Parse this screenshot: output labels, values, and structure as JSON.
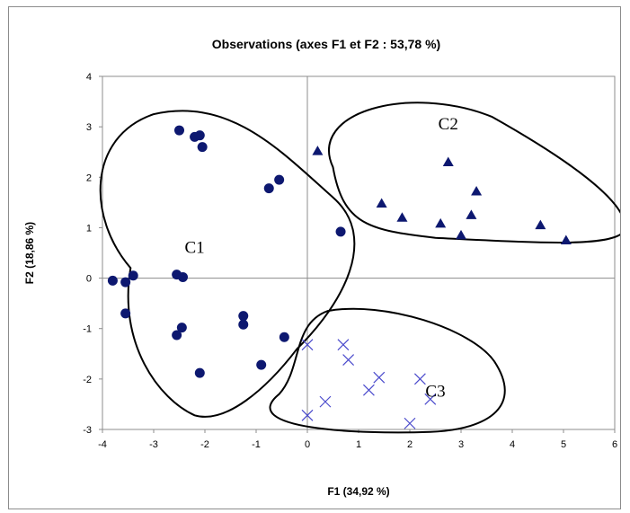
{
  "chart_data": {
    "type": "scatter",
    "title": "Observations (axes F1 et F2 : 53,78 %)",
    "xlabel": "F1 (34,92 %)",
    "ylabel": "F2 (18,86 %)",
    "xlim": [
      -4,
      6
    ],
    "ylim": [
      -3,
      4
    ],
    "xticks": [
      -4,
      -3,
      -2,
      -1,
      0,
      1,
      2,
      3,
      4,
      5,
      6
    ],
    "yticks": [
      -3,
      -2,
      -1,
      0,
      1,
      2,
      3,
      4
    ],
    "grid": false,
    "marker_color": "#0d1870",
    "series": [
      {
        "marker": "circle",
        "points": [
          [
            -2.5,
            2.93
          ],
          [
            -2.2,
            2.8
          ],
          [
            -2.1,
            2.83
          ],
          [
            -2.05,
            2.6
          ],
          [
            -0.75,
            1.78
          ],
          [
            -0.55,
            1.95
          ],
          [
            0.65,
            0.92
          ],
          [
            -3.8,
            -0.05
          ],
          [
            -3.55,
            -0.08
          ],
          [
            -3.4,
            0.05
          ],
          [
            -2.55,
            0.07
          ],
          [
            -2.43,
            0.02
          ],
          [
            -3.55,
            -0.7
          ],
          [
            -2.45,
            -0.98
          ],
          [
            -2.55,
            -1.13
          ],
          [
            -1.25,
            -0.75
          ],
          [
            -1.25,
            -0.92
          ],
          [
            -0.45,
            -1.17
          ],
          [
            -2.1,
            -1.88
          ],
          [
            -0.9,
            -1.72
          ]
        ]
      },
      {
        "marker": "triangle",
        "points": [
          [
            0.2,
            2.52
          ],
          [
            2.75,
            2.3
          ],
          [
            1.45,
            1.48
          ],
          [
            1.85,
            1.2
          ],
          [
            3.3,
            1.72
          ],
          [
            3.2,
            1.25
          ],
          [
            2.6,
            1.08
          ],
          [
            3.0,
            0.85
          ],
          [
            4.55,
            1.05
          ],
          [
            5.05,
            0.75
          ]
        ]
      },
      {
        "marker": "x",
        "points": [
          [
            0.0,
            -1.32
          ],
          [
            0.0,
            -2.72
          ],
          [
            0.7,
            -1.32
          ],
          [
            0.8,
            -1.62
          ],
          [
            1.4,
            -1.97
          ],
          [
            1.2,
            -2.22
          ],
          [
            0.35,
            -2.45
          ],
          [
            2.2,
            -2.0
          ],
          [
            2.4,
            -2.4
          ],
          [
            2.0,
            -2.88
          ]
        ]
      }
    ],
    "annotations": [
      "C1",
      "C2",
      "C3"
    ]
  }
}
